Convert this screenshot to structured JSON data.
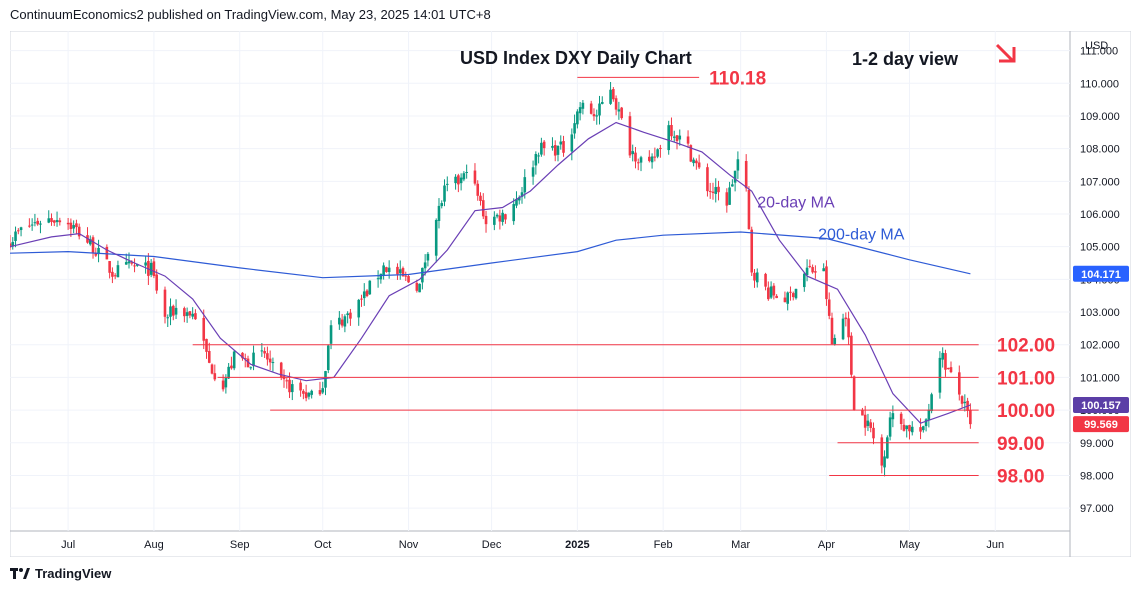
{
  "header": {
    "publisher_line": "ContinuumEconomics2 published on TradingView.com, May 23, 2025 14:01 UTC+8"
  },
  "footer": {
    "brand": "TradingView"
  },
  "colors": {
    "up": "#089981",
    "down": "#f23645",
    "ma20": "#6a3fb5",
    "ma200": "#2e5bd6",
    "level": "#f23645",
    "last_price_bg": "#f23645",
    "ma200_bg": "#2962ff",
    "ma20_bg": "#5b3ea6"
  },
  "chart_data": {
    "type": "candlestick",
    "title": "USD Index DXY Daily Chart",
    "view_note": "1-2 day view",
    "view_arrow": "down-right",
    "currency_label": "USD",
    "ylim": [
      96.3,
      111.6
    ],
    "y_ticks": [
      97,
      98,
      99,
      100,
      101,
      102,
      103,
      104,
      105,
      106,
      107,
      108,
      109,
      110,
      111
    ],
    "y_tick_labels": [
      "97.000",
      "98.000",
      "99.000",
      "100.000",
      "101.000",
      "102.000",
      "103.000",
      "104.000",
      "105.000",
      "106.000",
      "107.000",
      "108.000",
      "109.000",
      "110.000",
      "111.000"
    ],
    "x_range": [
      "2024-06-10",
      "2025-06-28"
    ],
    "x_ticks": [
      {
        "date": "2024-07-01",
        "label": "Jul",
        "bold": false
      },
      {
        "date": "2024-08-01",
        "label": "Aug",
        "bold": false
      },
      {
        "date": "2024-09-01",
        "label": "Sep",
        "bold": false
      },
      {
        "date": "2024-10-01",
        "label": "Oct",
        "bold": false
      },
      {
        "date": "2024-11-01",
        "label": "Nov",
        "bold": false
      },
      {
        "date": "2024-12-01",
        "label": "Dec",
        "bold": false
      },
      {
        "date": "2025-01-01",
        "label": "2025",
        "bold": true
      },
      {
        "date": "2025-02-01",
        "label": "Feb",
        "bold": false
      },
      {
        "date": "2025-03-01",
        "label": "Mar",
        "bold": false
      },
      {
        "date": "2025-04-01",
        "label": "Apr",
        "bold": false
      },
      {
        "date": "2025-05-01",
        "label": "May",
        "bold": false
      },
      {
        "date": "2025-06-01",
        "label": "Jun",
        "bold": false
      }
    ],
    "close_path": [
      [
        "2024-06-10",
        105.2
      ],
      [
        "2024-06-14",
        105.5
      ],
      [
        "2024-06-21",
        105.8
      ],
      [
        "2024-06-28",
        105.9
      ],
      [
        "2024-07-03",
        105.6
      ],
      [
        "2024-07-10",
        105.0
      ],
      [
        "2024-07-17",
        104.2
      ],
      [
        "2024-07-24",
        104.4
      ],
      [
        "2024-07-31",
        104.3
      ],
      [
        "2024-08-05",
        102.8
      ],
      [
        "2024-08-09",
        103.1
      ],
      [
        "2024-08-16",
        102.9
      ],
      [
        "2024-08-21",
        101.4
      ],
      [
        "2024-08-26",
        100.8
      ],
      [
        "2024-08-30",
        101.6
      ],
      [
        "2024-09-04",
        101.5
      ],
      [
        "2024-09-10",
        101.7
      ],
      [
        "2024-09-16",
        100.8
      ],
      [
        "2024-09-20",
        100.7
      ],
      [
        "2024-09-27",
        100.4
      ],
      [
        "2024-10-01",
        100.8
      ],
      [
        "2024-10-04",
        102.5
      ],
      [
        "2024-10-10",
        102.9
      ],
      [
        "2024-10-16",
        103.5
      ],
      [
        "2024-10-23",
        104.4
      ],
      [
        "2024-10-31",
        104.0
      ],
      [
        "2024-11-05",
        103.8
      ],
      [
        "2024-11-08",
        105.0
      ],
      [
        "2024-11-14",
        106.7
      ],
      [
        "2024-11-21",
        107.1
      ],
      [
        "2024-11-22",
        107.5
      ],
      [
        "2024-11-29",
        105.8
      ],
      [
        "2024-12-06",
        106.0
      ],
      [
        "2024-12-11",
        106.6
      ],
      [
        "2024-12-18",
        108.0
      ],
      [
        "2024-12-27",
        108.0
      ],
      [
        "2025-01-02",
        109.3
      ],
      [
        "2025-01-08",
        109.0
      ],
      [
        "2025-01-13",
        109.9
      ],
      [
        "2025-01-20",
        108.0
      ],
      [
        "2025-01-27",
        107.4
      ],
      [
        "2025-02-03",
        108.7
      ],
      [
        "2025-02-10",
        108.0
      ],
      [
        "2025-02-17",
        106.8
      ],
      [
        "2025-02-24",
        106.4
      ],
      [
        "2025-02-28",
        107.6
      ],
      [
        "2025-03-03",
        106.6
      ],
      [
        "2025-03-05",
        104.3
      ],
      [
        "2025-03-11",
        103.6
      ],
      [
        "2025-03-18",
        103.4
      ],
      [
        "2025-03-25",
        104.3
      ],
      [
        "2025-03-31",
        104.2
      ],
      [
        "2025-04-03",
        102.0
      ],
      [
        "2025-04-08",
        103.0
      ],
      [
        "2025-04-11",
        100.2
      ],
      [
        "2025-04-17",
        99.4
      ],
      [
        "2025-04-21",
        98.3
      ],
      [
        "2025-04-24",
        99.8
      ],
      [
        "2025-04-30",
        99.5
      ],
      [
        "2025-05-06",
        99.3
      ],
      [
        "2025-05-12",
        101.8
      ],
      [
        "2025-05-16",
        101.0
      ],
      [
        "2025-05-20",
        100.3
      ],
      [
        "2025-05-23",
        99.57
      ]
    ],
    "ma20": [
      [
        "2024-06-10",
        105.0
      ],
      [
        "2024-06-25",
        105.3
      ],
      [
        "2024-07-05",
        105.4
      ],
      [
        "2024-07-15",
        104.9
      ],
      [
        "2024-07-25",
        104.5
      ],
      [
        "2024-08-05",
        104.1
      ],
      [
        "2024-08-15",
        103.4
      ],
      [
        "2024-08-25",
        102.2
      ],
      [
        "2024-09-05",
        101.4
      ],
      [
        "2024-09-15",
        101.1
      ],
      [
        "2024-09-25",
        100.9
      ],
      [
        "2024-10-05",
        101.0
      ],
      [
        "2024-10-15",
        102.2
      ],
      [
        "2024-10-25",
        103.5
      ],
      [
        "2024-11-05",
        104.0
      ],
      [
        "2024-11-15",
        104.9
      ],
      [
        "2024-11-25",
        106.1
      ],
      [
        "2024-12-05",
        106.2
      ],
      [
        "2024-12-15",
        106.7
      ],
      [
        "2024-12-25",
        107.5
      ],
      [
        "2025-01-05",
        108.3
      ],
      [
        "2025-01-15",
        108.8
      ],
      [
        "2025-01-25",
        108.5
      ],
      [
        "2025-02-05",
        108.2
      ],
      [
        "2025-02-15",
        107.9
      ],
      [
        "2025-02-25",
        107.2
      ],
      [
        "2025-03-05",
        106.7
      ],
      [
        "2025-03-15",
        105.2
      ],
      [
        "2025-03-25",
        104.1
      ],
      [
        "2025-04-05",
        103.7
      ],
      [
        "2025-04-15",
        102.3
      ],
      [
        "2025-04-25",
        100.5
      ],
      [
        "2025-05-05",
        99.6
      ],
      [
        "2025-05-15",
        99.9
      ],
      [
        "2025-05-23",
        100.157
      ]
    ],
    "ma200": [
      [
        "2024-06-10",
        104.8
      ],
      [
        "2024-07-01",
        104.85
      ],
      [
        "2024-08-01",
        104.7
      ],
      [
        "2024-09-01",
        104.35
      ],
      [
        "2024-10-01",
        104.05
      ],
      [
        "2024-11-01",
        104.15
      ],
      [
        "2024-12-01",
        104.5
      ],
      [
        "2025-01-01",
        104.85
      ],
      [
        "2025-01-15",
        105.2
      ],
      [
        "2025-02-01",
        105.35
      ],
      [
        "2025-03-01",
        105.45
      ],
      [
        "2025-04-01",
        105.25
      ],
      [
        "2025-05-01",
        104.6
      ],
      [
        "2025-05-23",
        104.171
      ]
    ],
    "series_labels": {
      "ma20": "20-day MA",
      "ma200": "200-day MA"
    },
    "levels": [
      {
        "value": 110.18,
        "label": "110.18",
        "from": "2025-01-01"
      },
      {
        "value": 102.0,
        "label": "102.00",
        "from": "2024-08-15"
      },
      {
        "value": 101.0,
        "label": "101.00",
        "from": "2024-08-24"
      },
      {
        "value": 100.0,
        "label": "100.00",
        "from": "2024-09-12"
      },
      {
        "value": 99.0,
        "label": "99.00",
        "from": "2025-04-05"
      },
      {
        "value": 98.0,
        "label": "98.00",
        "from": "2025-04-02"
      }
    ],
    "price_badges": [
      {
        "value": 104.171,
        "label": "104.171",
        "color_key": "ma200_bg"
      },
      {
        "value": 100.157,
        "label": "100.157",
        "color_key": "ma20_bg"
      },
      {
        "value": 99.569,
        "label": "99.569",
        "color_key": "last_price_bg"
      }
    ]
  }
}
